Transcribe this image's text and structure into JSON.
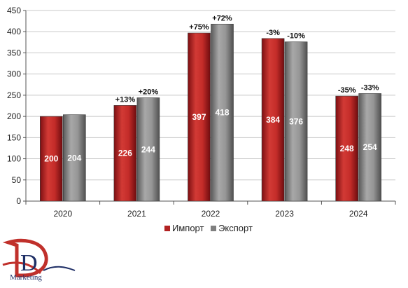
{
  "chart_data": {
    "type": "bar",
    "categories": [
      "2020",
      "2021",
      "2022",
      "2023",
      "2024"
    ],
    "series": [
      {
        "name": "Импорт",
        "values": [
          200,
          226,
          397,
          384,
          248
        ],
        "color": "#b22222",
        "change_labels": [
          "",
          "+13%",
          "+75%",
          "-3%",
          "-35%"
        ]
      },
      {
        "name": "Экспорт",
        "values": [
          204,
          244,
          418,
          376,
          254
        ],
        "color": "#7f7f7f",
        "change_labels": [
          "",
          "+20%",
          "+72%",
          "-10%",
          "-33%"
        ]
      }
    ],
    "ylim": [
      0,
      450
    ],
    "yticks": [
      0,
      50,
      100,
      150,
      200,
      250,
      300,
      350,
      400,
      450
    ],
    "grid": true,
    "legend_position": "bottom",
    "title": "",
    "xlabel": "",
    "ylabel": ""
  },
  "logo": {
    "mark": "D",
    "text": "Marketing"
  }
}
